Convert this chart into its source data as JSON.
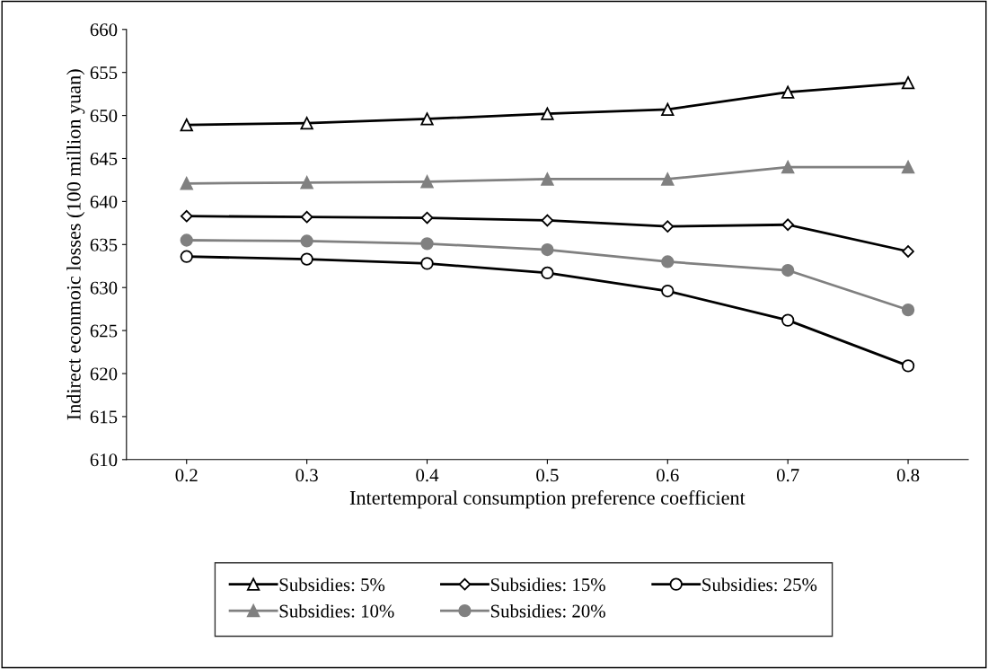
{
  "chart_data": {
    "type": "line",
    "xlabel": "Intertemporal consumption preference coefficient",
    "ylabel": "Indirect econmoic losses (100 million yuan)",
    "categories": [
      "0.2",
      "0.3",
      "0.4",
      "0.5",
      "0.6",
      "0.7",
      "0.8"
    ],
    "series": [
      {
        "name": "Subsidies: 5%",
        "color": "#000000",
        "marker": "triangle",
        "values": [
          648.9,
          649.1,
          649.6,
          650.2,
          650.7,
          652.7,
          653.8
        ]
      },
      {
        "name": "Subsidies: 10%",
        "color": "#808080",
        "marker": "triangle",
        "values": [
          642.1,
          642.2,
          642.3,
          642.6,
          642.6,
          644.0,
          644.0
        ]
      },
      {
        "name": "Subsidies: 15%",
        "color": "#000000",
        "marker": "diamond",
        "values": [
          638.3,
          638.2,
          638.1,
          637.8,
          637.1,
          637.3,
          634.2
        ]
      },
      {
        "name": "Subsidies: 20%",
        "color": "#808080",
        "marker": "circle",
        "values": [
          635.5,
          635.4,
          635.1,
          634.4,
          633.0,
          632.0,
          627.4
        ]
      },
      {
        "name": "Subsidies: 25%",
        "color": "#000000",
        "marker": "circle",
        "values": [
          633.6,
          633.3,
          632.8,
          631.7,
          629.6,
          626.2,
          620.9
        ]
      }
    ],
    "ylim": [
      610,
      660
    ],
    "yticks": [
      610,
      615,
      620,
      625,
      630,
      635,
      640,
      645,
      650,
      655,
      660
    ],
    "grid": false,
    "legend": "bottom",
    "line_style": "solid"
  }
}
